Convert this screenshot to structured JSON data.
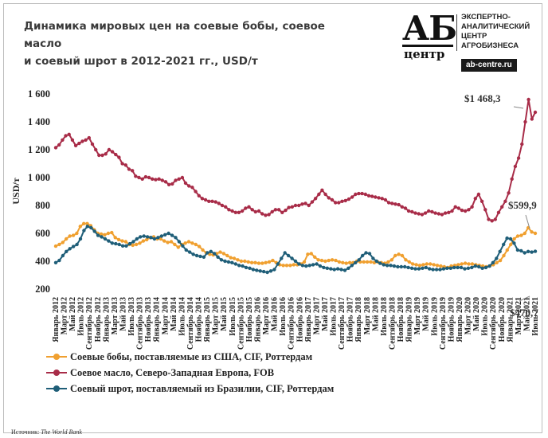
{
  "header": {
    "title_line1": "Динамика мировых цен на соевые бобы, соевое масло",
    "title_line2": "и соевый шрот в 2012-2021 гг., USD/т"
  },
  "logo": {
    "mark": "АБ",
    "center": "центр",
    "text_line1": "ЭКСПЕРТНО-",
    "text_line2": "АНАЛИТИЧЕСКИЙ",
    "text_line3": "ЦЕНТР",
    "text_line4": "АГРОБИЗНЕСА",
    "url": "ab-centre.ru"
  },
  "legend": {
    "item1": "Соевые бобы, поставляемые из США, CIF, Роттердам",
    "item2": "Соевое масло, Северо-Западная Европа, FOB",
    "item3": "Соевый шрот, поставляемый из Бразилии, CIF, Роттердам"
  },
  "source": {
    "label": "Источник:",
    "value": "The World Bank"
  },
  "colors": {
    "soybeans": "#F0A030",
    "soyoil": "#A82C48",
    "soymeal": "#1F5E78"
  },
  "chart_data": {
    "type": "line",
    "title": "Динамика мировых цен на соевые бобы, соевое масло и соевый шрот в 2012-2021 гг., USD/т",
    "xlabel": "",
    "ylabel": "USD/т",
    "ylim": [
      200,
      1600
    ],
    "yticks": [
      "200",
      "400",
      "600",
      "800",
      "1 000",
      "1 200",
      "1 400",
      "1 600"
    ],
    "grid": false,
    "legend_position": "bottom",
    "x_start": "Январь 2012",
    "x_end": "Июль 2021",
    "x_labels": [
      "Январь 2012",
      "Март 2012",
      "Май 2012",
      "Июль 2012",
      "Сентябрь 2012",
      "Ноябрь 2012",
      "Январь 2013",
      "Март 2013",
      "Май 2013",
      "Июль 2013",
      "Сентябрь 2013",
      "Ноябрь 2013",
      "Январь 2014",
      "Март 2014",
      "Май 2014",
      "Июль 2014",
      "Сентябрь 2014",
      "Ноябрь 2014",
      "Январь 2015",
      "Март 2015",
      "Май 2015",
      "Июль 2015",
      "Сентябрь 2015",
      "Ноябрь 2015",
      "Январь 2016",
      "Март 2016",
      "Май 2016",
      "Июль 2016",
      "Сентябрь 2016",
      "Ноябрь 2016",
      "Январь 2017",
      "Март 2017",
      "Май 2017",
      "Июль 2017",
      "Сентябрь 2017",
      "Ноябрь 2017",
      "Январь 2018",
      "Март 2018",
      "Май 2018",
      "Июль 2018",
      "Сентябрь 2018",
      "Ноябрь 2018",
      "Январь 2019",
      "Март 2019",
      "Май 2019",
      "Июль 2019",
      "Сентябрь 2019",
      "Ноябрь 2019",
      "Январь 2020",
      "Март 2020",
      "Май 2020",
      "Июль 2020",
      "Сентябрь 2020",
      "Ноябрь 2020",
      "Январь 2021",
      "Март 2021",
      "Май 2021",
      "Июль 2021"
    ],
    "annotations": [
      {
        "text": "$1 468,3",
        "series": "Соевое масло, Северо-Западная Европа, FOB",
        "value": 1468.3
      },
      {
        "text": "$599,9",
        "series": "Соевые бобы, поставляемые из США, CIF, Роттердам",
        "value": 599.9
      },
      {
        "text": "$470,7",
        "series": "Соевый шрот, поставляемый из Бразилии, CIF, Роттердам",
        "value": 470.7
      }
    ],
    "series": [
      {
        "name": "Соевые бобы, поставляемые из США, CIF, Роттердам",
        "key": "soybeans",
        "values": [
          508,
          520,
          535,
          560,
          580,
          585,
          600,
          650,
          670,
          670,
          655,
          625,
          600,
          595,
          590,
          600,
          605,
          570,
          555,
          545,
          540,
          520,
          515,
          520,
          530,
          545,
          555,
          570,
          575,
          560,
          560,
          545,
          535,
          540,
          520,
          500,
          520,
          530,
          540,
          530,
          520,
          505,
          480,
          460,
          450,
          445,
          455,
          465,
          455,
          440,
          425,
          420,
          410,
          400,
          400,
          395,
          390,
          390,
          385,
          385,
          390,
          395,
          405,
          390,
          375,
          370,
          370,
          370,
          375,
          375,
          380,
          395,
          450,
          455,
          430,
          410,
          405,
          400,
          405,
          410,
          405,
          395,
          390,
          385,
          390,
          390,
          400,
          395,
          395,
          395,
          395,
          390,
          395,
          390,
          385,
          395,
          410,
          440,
          450,
          440,
          410,
          395,
          380,
          375,
          370,
          375,
          380,
          380,
          375,
          370,
          365,
          360,
          355,
          365,
          370,
          375,
          380,
          385,
          380,
          380,
          375,
          370,
          365,
          360,
          365,
          375,
          390,
          405,
          440,
          480,
          520,
          560,
          580,
          585,
          600,
          640,
          610,
          600
        ]
      },
      {
        "name": "Соевое масло, Северо-Западная Европа, FOB",
        "key": "soyoil",
        "values": [
          1215,
          1235,
          1270,
          1300,
          1310,
          1270,
          1230,
          1245,
          1260,
          1270,
          1285,
          1240,
          1200,
          1160,
          1160,
          1170,
          1200,
          1185,
          1165,
          1145,
          1100,
          1090,
          1060,
          1050,
          1010,
          1000,
          990,
          1005,
          1000,
          990,
          985,
          990,
          980,
          970,
          950,
          955,
          980,
          990,
          1000,
          960,
          940,
          930,
          900,
          870,
          850,
          840,
          830,
          830,
          825,
          815,
          800,
          790,
          770,
          760,
          750,
          750,
          760,
          780,
          790,
          770,
          755,
          760,
          740,
          730,
          735,
          755,
          770,
          770,
          750,
          765,
          785,
          790,
          800,
          800,
          810,
          815,
          800,
          825,
          850,
          880,
          910,
          880,
          855,
          840,
          820,
          820,
          830,
          835,
          845,
          860,
          880,
          885,
          885,
          880,
          870,
          865,
          860,
          855,
          850,
          840,
          820,
          815,
          810,
          805,
          790,
          780,
          760,
          755,
          745,
          740,
          735,
          745,
          760,
          755,
          745,
          740,
          735,
          745,
          750,
          760,
          790,
          780,
          765,
          760,
          770,
          790,
          850,
          880,
          830,
          770,
          700,
          690,
          700,
          750,
          790,
          830,
          890,
          990,
          1080,
          1140,
          1240,
          1400,
          1560,
          1420,
          1468.3
        ]
      },
      {
        "name": "Соевый шрот, поставляемый из Бразилии, CIF, Роттердам",
        "key": "soymeal",
        "values": [
          390,
          405,
          440,
          470,
          490,
          505,
          520,
          560,
          620,
          650,
          640,
          615,
          585,
          575,
          560,
          545,
          530,
          525,
          520,
          510,
          510,
          525,
          540,
          560,
          575,
          580,
          575,
          570,
          560,
          570,
          580,
          590,
          600,
          585,
          570,
          540,
          510,
          480,
          465,
          450,
          440,
          435,
          430,
          460,
          470,
          455,
          430,
          410,
          400,
          395,
          390,
          380,
          370,
          365,
          355,
          350,
          340,
          335,
          330,
          325,
          320,
          330,
          340,
          380,
          420,
          460,
          440,
          420,
          400,
          380,
          370,
          365,
          370,
          375,
          380,
          365,
          355,
          350,
          345,
          340,
          345,
          340,
          335,
          350,
          370,
          390,
          410,
          440,
          460,
          455,
          420,
          400,
          385,
          375,
          370,
          370,
          365,
          360,
          360,
          360,
          355,
          350,
          345,
          345,
          350,
          355,
          345,
          340,
          340,
          340,
          345,
          350,
          350,
          355,
          355,
          355,
          345,
          350,
          355,
          365,
          360,
          350,
          355,
          365,
          390,
          420,
          470,
          520,
          565,
          560,
          530,
          480,
          475,
          460,
          470,
          465,
          470.7
        ]
      }
    ]
  }
}
